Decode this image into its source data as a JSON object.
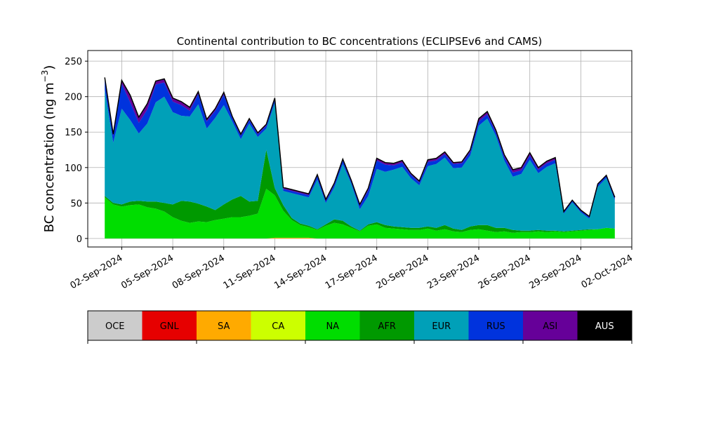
{
  "chart_data": {
    "type": "area",
    "stacked": true,
    "title": "Continental contribution to BC concentrations (ECLIPSEv6 and CAMS)",
    "ylabel_main": "BC concentration (ng m",
    "ylabel_sup": "−3",
    "ylabel_close": ")",
    "xlabel": "",
    "grid": true,
    "ylim": [
      -12,
      265
    ],
    "xlim": [
      "2024-08-31T00:00",
      "2024-10-02T00:00"
    ],
    "yticks": [
      0,
      50,
      100,
      150,
      200,
      250
    ],
    "xticks": [
      "02-Sep-2024",
      "05-Sep-2024",
      "08-Sep-2024",
      "11-Sep-2024",
      "14-Sep-2024",
      "17-Sep-2024",
      "20-Sep-2024",
      "23-Sep-2024",
      "26-Sep-2024",
      "29-Sep-2024",
      "02-Oct-2024"
    ],
    "x": [
      "2024-09-01",
      "2024-09-01T12:00",
      "2024-09-02",
      "2024-09-02T12:00",
      "2024-09-03",
      "2024-09-03T12:00",
      "2024-09-04",
      "2024-09-04T12:00",
      "2024-09-05",
      "2024-09-05T12:00",
      "2024-09-06",
      "2024-09-06T12:00",
      "2024-09-07",
      "2024-09-07T12:00",
      "2024-09-08",
      "2024-09-08T12:00",
      "2024-09-09",
      "2024-09-09T12:00",
      "2024-09-10",
      "2024-09-10T12:00",
      "2024-09-11",
      "2024-09-11T12:00",
      "2024-09-12",
      "2024-09-12T12:00",
      "2024-09-13",
      "2024-09-13T12:00",
      "2024-09-14",
      "2024-09-14T12:00",
      "2024-09-15",
      "2024-09-15T12:00",
      "2024-09-16",
      "2024-09-16T12:00",
      "2024-09-17",
      "2024-09-17T12:00",
      "2024-09-18",
      "2024-09-18T12:00",
      "2024-09-19",
      "2024-09-19T12:00",
      "2024-09-20",
      "2024-09-20T12:00",
      "2024-09-21",
      "2024-09-21T12:00",
      "2024-09-22",
      "2024-09-22T12:00",
      "2024-09-23",
      "2024-09-23T12:00",
      "2024-09-24",
      "2024-09-24T12:00",
      "2024-09-25",
      "2024-09-25T12:00",
      "2024-09-26",
      "2024-09-26T12:00",
      "2024-09-27",
      "2024-09-27T12:00",
      "2024-09-28",
      "2024-09-28T12:00",
      "2024-09-29",
      "2024-09-29T12:00",
      "2024-09-30",
      "2024-09-30T12:00",
      "2024-10-01"
    ],
    "series": [
      {
        "name": "OCE",
        "color": "#cccccc",
        "values": [
          0,
          0,
          0,
          0,
          0,
          0,
          0,
          0,
          0,
          0,
          0,
          0,
          0,
          0,
          0,
          0,
          0,
          0,
          0,
          0,
          0,
          0,
          0,
          0,
          0,
          0,
          0,
          0,
          0,
          0,
          0,
          0,
          0,
          0,
          0,
          0,
          0,
          0,
          0,
          0,
          0,
          0,
          0,
          0,
          0,
          0,
          0,
          0,
          0,
          0,
          0,
          0,
          0,
          0,
          0,
          0,
          0,
          0,
          0,
          0,
          0
        ]
      },
      {
        "name": "GNL",
        "color": "#e60000",
        "values": [
          0,
          0,
          0,
          0,
          0,
          0,
          0,
          0,
          0,
          0,
          0,
          0,
          0,
          0,
          0,
          0,
          0,
          0,
          0,
          0,
          0,
          0,
          0,
          0,
          0,
          0,
          0,
          0,
          0,
          0,
          0,
          0,
          0,
          0,
          0,
          0,
          0,
          0,
          0,
          0,
          0,
          0,
          0,
          0,
          0,
          0,
          0,
          0,
          0,
          0,
          0,
          0,
          0,
          0,
          0,
          0,
          0,
          0,
          0,
          0,
          0
        ]
      },
      {
        "name": "SA",
        "color": "#ffaa00",
        "values": [
          0,
          0,
          0,
          0,
          0,
          0,
          0,
          0,
          0,
          0,
          0,
          0,
          0,
          0,
          0,
          0,
          0,
          0,
          0,
          0,
          1,
          1,
          1,
          1,
          1,
          0,
          0,
          0,
          0,
          0,
          0,
          0,
          0,
          0,
          0,
          0,
          0,
          0,
          0,
          0,
          0,
          0,
          0,
          0,
          0,
          0,
          0,
          0,
          0,
          0,
          0,
          0,
          0,
          0,
          0,
          0,
          0,
          0,
          0,
          0,
          0
        ]
      },
      {
        "name": "CA",
        "color": "#ccff00",
        "values": [
          0,
          0,
          0,
          0,
          0,
          0,
          0,
          0,
          0,
          0,
          0,
          0,
          0,
          0,
          0,
          0,
          0,
          0,
          0,
          0,
          0,
          0,
          0,
          0,
          0,
          0,
          0,
          0,
          0,
          0,
          0,
          0,
          0,
          0,
          0,
          0,
          0,
          0,
          0,
          0,
          0,
          0,
          0,
          0,
          0,
          0,
          0,
          0,
          0,
          0,
          0,
          0,
          0,
          0,
          0,
          0,
          0,
          0,
          0,
          0,
          0
        ]
      },
      {
        "name": "NA",
        "color": "#00dd00",
        "values": [
          58,
          48,
          45,
          47,
          48,
          44,
          42,
          38,
          30,
          25,
          22,
          24,
          23,
          26,
          28,
          30,
          30,
          32,
          35,
          70,
          60,
          38,
          25,
          18,
          15,
          12,
          18,
          22,
          20,
          15,
          10,
          18,
          20,
          15,
          14,
          13,
          12,
          12,
          14,
          11,
          13,
          10,
          9,
          12,
          13,
          11,
          9,
          10,
          8,
          9,
          9,
          10,
          9,
          10,
          9,
          10,
          11,
          12,
          13,
          15,
          14
        ]
      },
      {
        "name": "AFR",
        "color": "#009900",
        "values": [
          2,
          2,
          3,
          5,
          5,
          8,
          10,
          12,
          18,
          28,
          30,
          25,
          22,
          14,
          20,
          25,
          30,
          20,
          18,
          55,
          10,
          8,
          3,
          2,
          2,
          1,
          2,
          5,
          5,
          2,
          1,
          2,
          3,
          4,
          3,
          3,
          3,
          3,
          3,
          4,
          6,
          4,
          3,
          5,
          6,
          8,
          6,
          5,
          4,
          2,
          2,
          2,
          2,
          1,
          1,
          1,
          1,
          1,
          0,
          0,
          0
        ]
      },
      {
        "name": "EUR",
        "color": "#00a0b8",
        "values": [
          150,
          85,
          135,
          115,
          95,
          110,
          140,
          150,
          130,
          120,
          120,
          140,
          110,
          130,
          140,
          110,
          80,
          110,
          90,
          30,
          120,
          20,
          35,
          40,
          40,
          70,
          30,
          45,
          80,
          60,
          30,
          40,
          75,
          75,
          80,
          85,
          70,
          60,
          85,
          90,
          95,
          85,
          88,
          100,
          140,
          150,
          130,
          95,
          75,
          80,
          100,
          80,
          90,
          95,
          25,
          40,
          25,
          15,
          60,
          70,
          40
        ]
      },
      {
        "name": "RUS",
        "color": "#0033dd",
        "values": [
          15,
          10,
          35,
          25,
          15,
          20,
          25,
          20,
          15,
          15,
          8,
          15,
          10,
          10,
          15,
          5,
          5,
          5,
          4,
          4,
          5,
          3,
          3,
          3,
          3,
          5,
          3,
          4,
          5,
          3,
          5,
          8,
          12,
          10,
          6,
          6,
          5,
          4,
          6,
          5,
          5,
          6,
          6,
          5,
          6,
          6,
          5,
          5,
          6,
          5,
          6,
          5,
          5,
          5,
          2,
          2,
          2,
          2,
          3,
          3,
          3
        ]
      },
      {
        "name": "ASI",
        "color": "#660099",
        "values": [
          2,
          2,
          5,
          10,
          8,
          8,
          5,
          5,
          5,
          5,
          5,
          3,
          3,
          3,
          3,
          2,
          2,
          2,
          2,
          2,
          2,
          2,
          2,
          2,
          2,
          2,
          2,
          2,
          2,
          2,
          2,
          3,
          3,
          3,
          3,
          3,
          2,
          2,
          3,
          3,
          3,
          2,
          2,
          3,
          4,
          4,
          3,
          3,
          4,
          4,
          4,
          3,
          3,
          3,
          1,
          1,
          1,
          1,
          1,
          1,
          1
        ]
      },
      {
        "name": "AUS",
        "color": "#000000",
        "values": [
          0,
          0,
          0,
          0,
          0,
          0,
          0,
          0,
          0,
          0,
          0,
          0,
          0,
          0,
          0,
          0,
          0,
          0,
          0,
          0,
          0,
          0,
          0,
          0,
          0,
          0,
          0,
          0,
          0,
          0,
          0,
          0,
          0,
          0,
          0,
          0,
          0,
          0,
          0,
          0,
          0,
          0,
          0,
          0,
          0,
          0,
          0,
          0,
          0,
          0,
          0,
          0,
          0,
          0,
          0,
          0,
          0,
          0,
          0,
          0,
          0
        ]
      }
    ],
    "legend_placement": "bottom colorbar"
  }
}
